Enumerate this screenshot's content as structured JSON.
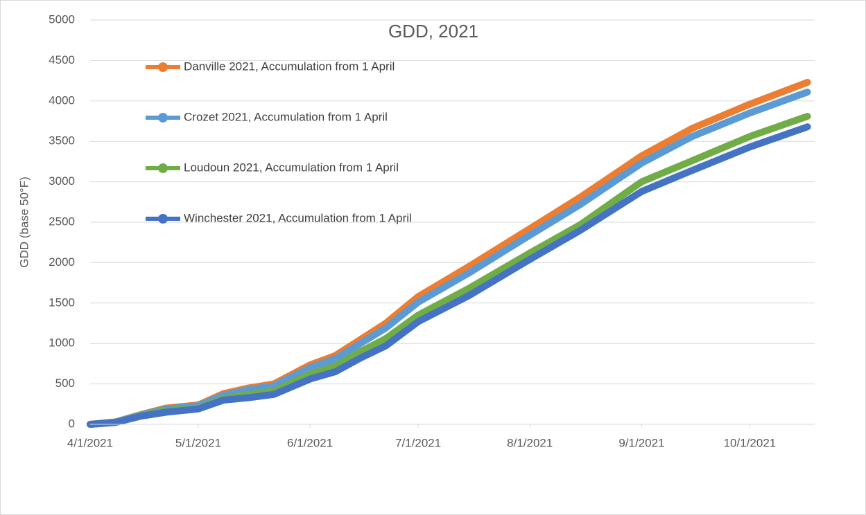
{
  "chart_data": {
    "type": "line",
    "title": "GDD, 2021",
    "y_label": "GDD (base 50°F)",
    "x": [
      "4/1/2021",
      "4/8/2021",
      "4/15/2021",
      "4/22/2021",
      "5/1/2021",
      "5/8/2021",
      "5/15/2021",
      "5/22/2021",
      "6/1/2021",
      "6/8/2021",
      "6/15/2021",
      "6/22/2021",
      "7/1/2021",
      "7/15/2021",
      "8/1/2021",
      "8/15/2021",
      "9/1/2021",
      "9/15/2021",
      "10/1/2021",
      "10/17/2021"
    ],
    "series": [
      {
        "name": "Danville 2021, Accumulation from 1 April",
        "color": "#ed7d31",
        "values": [
          0,
          30,
          120,
          200,
          240,
          380,
          450,
          500,
          735,
          850,
          1050,
          1250,
          1580,
          1950,
          2420,
          2810,
          3320,
          3660,
          3960,
          4230
        ]
      },
      {
        "name": "Crozet 2021, Accumulation from 1 April",
        "color": "#5b9bd5",
        "values": [
          0,
          28,
          115,
          190,
          230,
          360,
          430,
          475,
          700,
          810,
          1000,
          1190,
          1510,
          1870,
          2340,
          2720,
          3230,
          3560,
          3850,
          4110
        ]
      },
      {
        "name": "Loudoun 2021, Accumulation from 1 April",
        "color": "#70ad47",
        "values": [
          0,
          25,
          105,
          170,
          200,
          320,
          370,
          410,
          620,
          720,
          900,
          1060,
          1350,
          1680,
          2120,
          2470,
          3000,
          3260,
          3560,
          3810
        ]
      },
      {
        "name": "Winchester 2021, Accumulation from 1 April",
        "color": "#4472c4",
        "values": [
          0,
          22,
          100,
          150,
          190,
          300,
          330,
          370,
          560,
          650,
          820,
          970,
          1270,
          1590,
          2040,
          2400,
          2880,
          3140,
          3430,
          3680
        ]
      }
    ],
    "xlim": [
      "4/1/2021",
      "10/19/2021"
    ],
    "xticks": [
      "4/1/2021",
      "5/1/2021",
      "6/1/2021",
      "7/1/2021",
      "8/1/2021",
      "9/1/2021",
      "10/1/2021"
    ],
    "ylim": [
      0,
      5000
    ],
    "yticks": [
      0,
      500,
      1000,
      1500,
      2000,
      2500,
      3000,
      3500,
      4000,
      4500,
      5000
    ],
    "grid": true
  }
}
